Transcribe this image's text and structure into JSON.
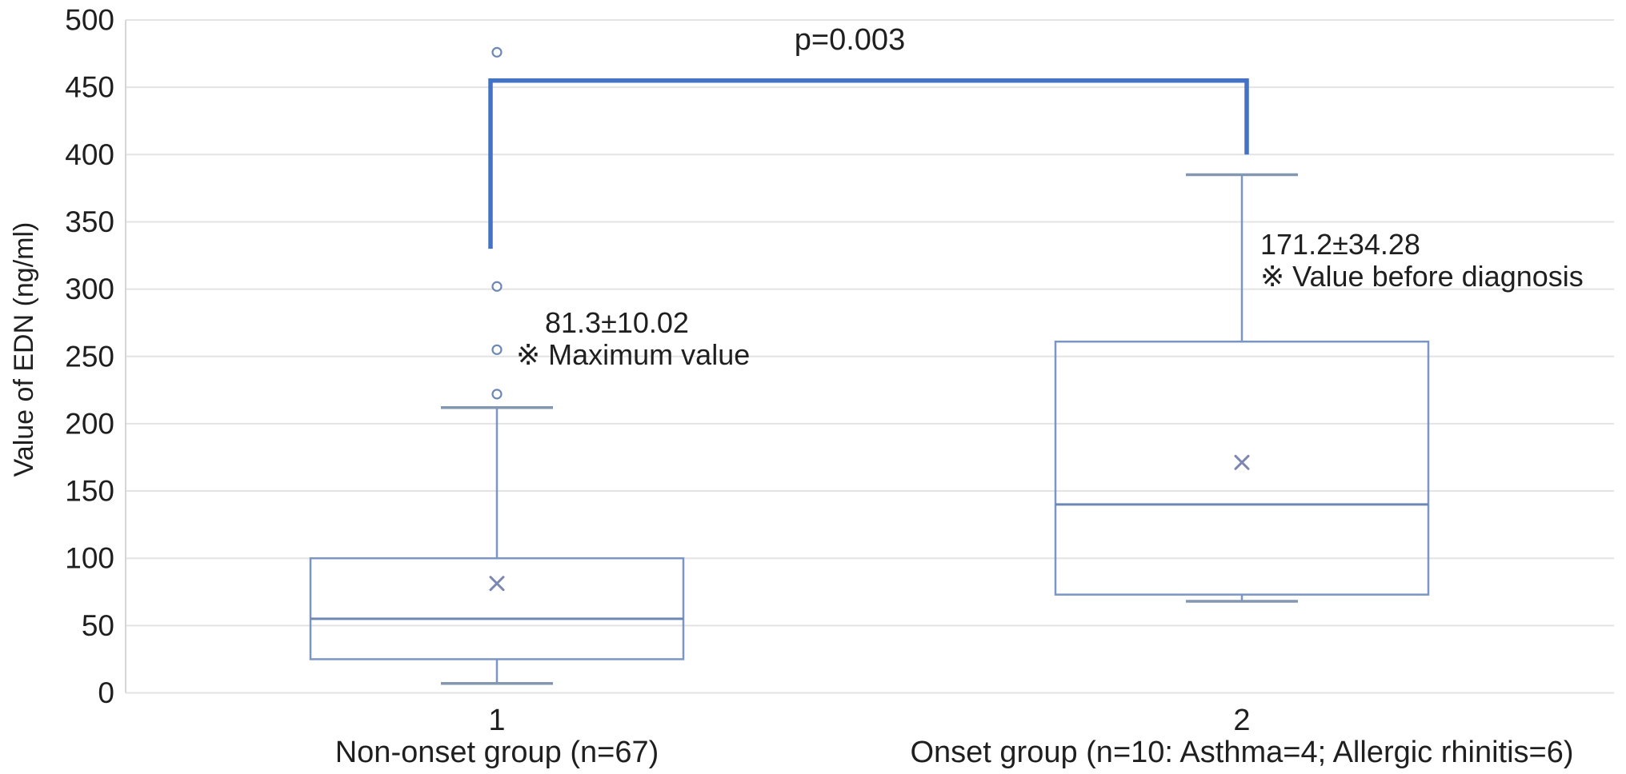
{
  "figure": {
    "title": "",
    "y_axis_title": "Value of EDN (ng/ml)",
    "significance_label": "p=0.003"
  },
  "chart_data": {
    "type": "box",
    "title": "",
    "xlabel": "",
    "ylabel": "Value of EDN (ng/ml)",
    "ylim": [
      0,
      500
    ],
    "ytick_step": 50,
    "yticks": [
      0,
      50,
      100,
      150,
      200,
      250,
      300,
      350,
      400,
      450,
      500
    ],
    "grid": true,
    "legend_position": "none",
    "groups": [
      {
        "tick": "1",
        "label": "Non-onset group (n=67)",
        "whisker_low": 7,
        "q1": 25,
        "median": 55,
        "q3": 100,
        "whisker_high": 212,
        "mean": 81.3,
        "outliers": [
          222,
          255,
          302,
          476
        ],
        "annotation": [
          "81.3±10.02",
          "※ Maximum value"
        ]
      },
      {
        "tick": "2",
        "label": "Onset group (n=10: Asthma=4; Allergic rhinitis=6)",
        "whisker_low": 68,
        "q1": 73,
        "median": 140,
        "q3": 261,
        "whisker_high": 385,
        "mean": 171.2,
        "outliers": [],
        "annotation": [
          "171.2±34.28",
          "※ Value before diagnosis"
        ]
      }
    ],
    "significance": {
      "label": "p=0.003",
      "bar_value": 455,
      "left_drop_value": 330,
      "right_drop_value": 400
    },
    "colors": {
      "background": "#ffffff",
      "gridline": "#e3e3e3",
      "axis_line": "#d6d6d6",
      "box_stroke": "#7b96c4",
      "median_stroke": "#6d88b5",
      "whisker_stroke": "#7b96c4",
      "cap_stroke": "#8497b0",
      "mean_marker": "#7d87b2",
      "outlier_stroke": "#6d88b5",
      "bracket": "#4472c4",
      "text": "#1f1f1f"
    }
  }
}
